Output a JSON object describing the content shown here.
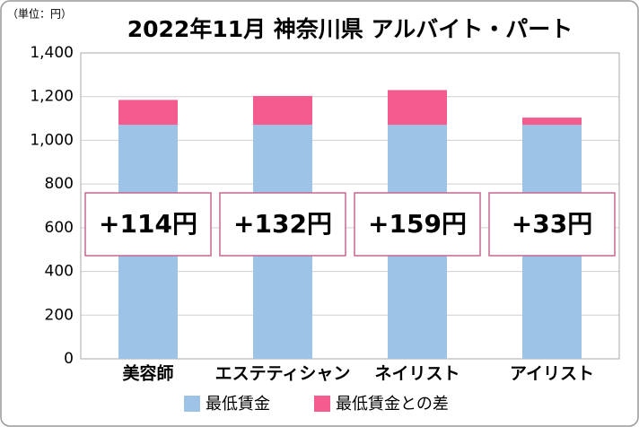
{
  "chart_data": {
    "type": "stacked-bar",
    "title": "2022年11月 神奈川県 アルバイト・パート",
    "unit_label": "（単位：円）",
    "categories": [
      "美容師",
      "エステティシャン",
      "ネイリスト",
      "アイリスト"
    ],
    "series": [
      {
        "name": "最低賃金",
        "color": "#9dc3e6",
        "values": [
          1071,
          1071,
          1071,
          1071
        ]
      },
      {
        "name": "最低賃金との差",
        "color": "#f45b8e",
        "values": [
          114,
          132,
          159,
          33
        ],
        "value_labels": [
          "+114円",
          "+132円",
          "+159円",
          "+33円"
        ]
      }
    ],
    "ylim": [
      0,
      1400
    ],
    "yticks": [
      0,
      200,
      400,
      600,
      800,
      {
        "value": 1000,
        "label": "1,000"
      },
      {
        "value": 1200,
        "label": "1,200"
      },
      {
        "value": 1400,
        "label": "1,400"
      }
    ],
    "grid": true
  }
}
